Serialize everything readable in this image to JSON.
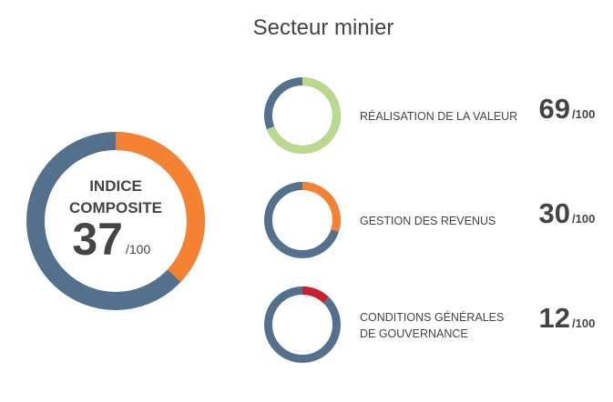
{
  "title": "Secteur minier",
  "chart_data": [
    {
      "type": "donut",
      "title_lines": [
        "INDICE",
        "COMPOSITE"
      ],
      "value": 37,
      "total": {
        "value": 100,
        "label": "/100"
      },
      "color": "#f58233",
      "track_color": "#53718c"
    },
    {
      "type": "donut",
      "title_lines": [
        "RÉALISATION DE LA VALEUR"
      ],
      "value": 69,
      "total": {
        "value": 100,
        "label": "/100"
      },
      "color": "#b9d98d",
      "track_color": "#53718c"
    },
    {
      "type": "donut",
      "title_lines": [
        "GESTION DES REVENUS"
      ],
      "value": 30,
      "total": {
        "value": 100,
        "label": "/100"
      },
      "color": "#f58233",
      "track_color": "#53718c"
    },
    {
      "type": "donut",
      "title_lines": [
        "CONDITIONS GÉNÉRALES",
        "DE GOUVERNANCE"
      ],
      "value": 12,
      "total": {
        "value": 100,
        "label": "/100"
      },
      "color": "#c8202f",
      "track_color": "#53718c"
    }
  ]
}
